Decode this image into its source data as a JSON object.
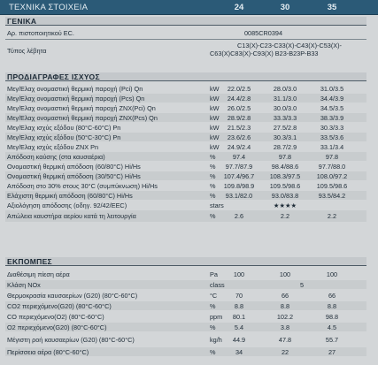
{
  "header": {
    "title": "ΤΕΧΝΙΚΑ ΣΤΟΙΧΕΙΑ",
    "columns": [
      "24",
      "30",
      "35"
    ]
  },
  "general": {
    "heading": "ΓΕΝΙΚΑ",
    "cert_label": "Αρ. πιστοποιητικού EC.",
    "cert_value": "0085CR0394",
    "type_label": "Τύπος λέβητα",
    "type_value_1": "C13(X)-C23-C33(X)-C43(X)-C53(X)-",
    "type_value_2": "C63(X)C83(X)-C93(X) B23-B23P-B33"
  },
  "performance": {
    "heading": "ΠΡΟΔΙΑΓΡΑΦΕΣ ΙΣΧΥΟΣ",
    "rows": [
      {
        "label": "Μεγ/Ελαχ ονομαστική θερμική παροχή (Pci) Qn",
        "unit": "kW",
        "v1": "22.0/2.5",
        "v2": "28.0/3.0",
        "v3": "31.0/3.5"
      },
      {
        "label": "Μεγ/Ελαχ ονομαστική θερμική παροχή (Pcs) Qn",
        "unit": "kW",
        "v1": "24.4/2.8",
        "v2": "31.1/3.0",
        "v3": "34.4/3.9"
      },
      {
        "label": "Μεγ/Ελαχ ονομαστική θερμική παροχή ZNX(Pci) Qn",
        "unit": "kW",
        "v1": "26.0/2.5",
        "v2": "30.0/3.0",
        "v3": "34.5/3.5"
      },
      {
        "label": "Μεγ/Ελαχ ονομαστική θερμική παροχή ZNX(Pcs) Qn",
        "unit": "kW",
        "v1": "28.9/2.8",
        "v2": "33.3/3.3",
        "v3": "38.3/3.9"
      },
      {
        "label": "Μεγ/Ελαχ ισχύς εξόδου (80°C-60°C) Pn",
        "unit": "kW",
        "v1": "21.5/2.3",
        "v2": "27.5/2.8",
        "v3": "30.3/3.3"
      },
      {
        "label": "Μεγ/Ελαχ ισχύς εξόδου (50°C-30°C) Pn",
        "unit": "kW",
        "v1": "23.6/2.6",
        "v2": "30.3/3.1",
        "v3": "33.5/3.6"
      },
      {
        "label": "Μεγ/Ελαχ ισχύς εξόδου ZNX Pn",
        "unit": "kW",
        "v1": "24.9/2.4",
        "v2": "28.7/2.9",
        "v3": "33.1/3.4"
      },
      {
        "label": "Απόδοση καύσης (στα καυσαέρια)",
        "unit": "%",
        "v1": "97.4",
        "v2": "97.8",
        "v3": "97.8"
      },
      {
        "label": "Ονομαστική θερμική απόδοση (60/80°C) Hi/Hs",
        "unit": "%",
        "v1": "97.7/87.9",
        "v2": "98.4/88.6",
        "v3": "97.7/88.0"
      },
      {
        "label": "Ονομαστική θερμική απόδοση (30/50°C) Hi/Hs",
        "unit": "%",
        "v1": "107.4/96.7",
        "v2": "108.3/97.5",
        "v3": "108.0/97.2"
      },
      {
        "label": "Απόδοση στο 30% στους 30°C (συμπύκνωση) Hi/Hs",
        "unit": "%",
        "v1": "109.8/98.9",
        "v2": "109.5/98.6",
        "v3": "109.5/98.6"
      },
      {
        "label": "Ελάχιστη θερμική απόδοση (60/80°C) Hi/Hs",
        "unit": "%",
        "v1": "93.1/82.0",
        "v2": "93.0/83.8",
        "v3": "93.5/84.2"
      },
      {
        "label": "Αξιολόγηση απόδοσης (οδηγ. 92/42/EEC)",
        "unit": "stars",
        "v1": "",
        "v2": "★★★★",
        "v3": ""
      },
      {
        "label": "Απώλεια καυστήρα αερίου κατά τη λειτουργία",
        "unit": "%",
        "v1": "2.6",
        "v2": "2.2",
        "v3": "2.2"
      }
    ]
  },
  "emissions": {
    "heading": "ΕΚΠΟΜΠΕΣ",
    "rows": [
      {
        "label": "Διαθέσιμη πίεση αέρα",
        "unit": "Pa",
        "v1": "100",
        "v2": "100",
        "v3": "100"
      },
      {
        "label": "Κλάση NOx",
        "unit": "class",
        "v1": "",
        "v2": "5",
        "v3": ""
      },
      {
        "label": "Θερμοκρασία καυσαερίων (G20) (80°C-60°C)",
        "unit": "°C",
        "v1": "70",
        "v2": "66",
        "v3": "66"
      },
      {
        "label": "CO2 περιεχόμενο(G20) (80°C-60°C)",
        "unit": "%",
        "v1": "8.8",
        "v2": "8.8",
        "v3": "8.8"
      },
      {
        "label": "CO περιεχόμενο(O2) (80°C-60°C)",
        "unit": "ppm",
        "v1": "80.1",
        "v2": "102.2",
        "v3": "98.8"
      },
      {
        "label": "O2 περιεχόμενο(G20) (80°C-60°C)",
        "unit": "%",
        "v1": "5.4",
        "v2": "3.8",
        "v3": "4.5"
      },
      {
        "label": "Μέγιστη ροή καυσαερίων (G20) (80°C-60°C)",
        "unit": "kg/h",
        "v1": "44.9",
        "v2": "47.8",
        "v3": "55.7"
      },
      {
        "label": "Περίσσεια αέρα (80°C-60°C)",
        "unit": "%",
        "v1": "34",
        "v2": "22",
        "v3": "27"
      }
    ]
  }
}
